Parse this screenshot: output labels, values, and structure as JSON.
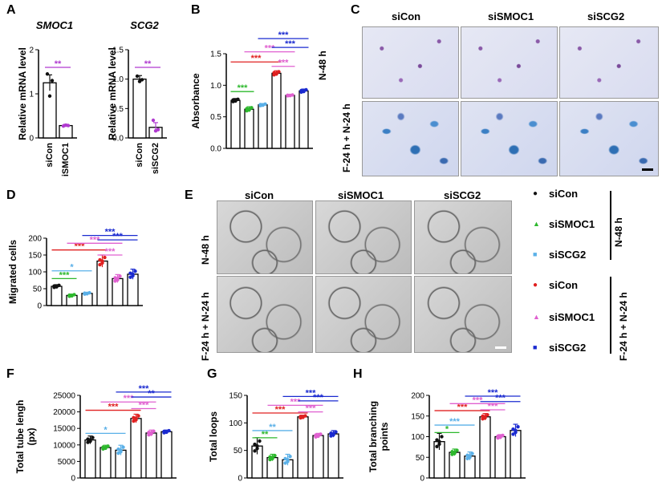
{
  "panels": {
    "A": "A",
    "B": "B",
    "C": "C",
    "D": "D",
    "E": "E",
    "F": "F",
    "G": "G",
    "H": "H"
  },
  "colors": {
    "black": "#111111",
    "green": "#2db82d",
    "lightblue": "#5ab0e8",
    "red": "#e02020",
    "pink": "#e060d0",
    "blue": "#1a2ad0",
    "purple": "#b03ad0",
    "bar_edge": "#000000"
  },
  "chart_data": [
    {
      "id": "A1",
      "type": "bar",
      "title": "SMOC1",
      "ylabel": "Relative mRNA level",
      "categories": [
        "siCon",
        "siSMOC1"
      ],
      "values": [
        1.25,
        0.28
      ],
      "errors": [
        0.18,
        0.03
      ],
      "ylim": [
        0,
        2.0
      ],
      "yticks": [
        "0",
        "1",
        "2"
      ],
      "ytick_values": [
        0,
        1,
        2
      ],
      "bar_colors": [
        "#ffffff",
        "#ffffff"
      ],
      "point_colors": [
        "#111111",
        "#b03ad0"
      ],
      "points": [
        [
          1.45,
          0.95,
          1.3
        ],
        [
          0.27,
          0.29,
          0.28
        ]
      ],
      "significance": [
        {
          "from": 0,
          "to": 1,
          "label": "**",
          "color": "#b03ad0",
          "y": 1.6
        }
      ]
    },
    {
      "id": "A2",
      "type": "bar",
      "title": "SCG2",
      "ylabel": "Relative mRNA level",
      "categories": [
        "siCon",
        "siSCG2"
      ],
      "values": [
        1.0,
        0.18
      ],
      "errors": [
        0.06,
        0.08
      ],
      "ylim": [
        0,
        1.5
      ],
      "yticks": [
        "0.0",
        "0.5",
        "1.0",
        "1.5"
      ],
      "ytick_values": [
        0,
        0.5,
        1.0,
        1.5
      ],
      "bar_colors": [
        "#ffffff",
        "#ffffff"
      ],
      "point_colors": [
        "#111111",
        "#b03ad0"
      ],
      "points": [
        [
          1.05,
          0.96,
          0.99
        ],
        [
          0.3,
          0.12,
          0.14
        ]
      ],
      "significance": [
        {
          "from": 0,
          "to": 1,
          "label": "**",
          "color": "#b03ad0",
          "y": 1.2
        }
      ]
    },
    {
      "id": "B",
      "type": "bar",
      "ylabel": "Absorbance",
      "categories": [
        "",
        "",
        "",
        "",
        "",
        ""
      ],
      "values": [
        0.76,
        0.62,
        0.69,
        1.19,
        0.84,
        0.91
      ],
      "errors": [
        0.03,
        0.04,
        0.02,
        0.04,
        0.01,
        0.03
      ],
      "ylim": [
        0,
        1.5
      ],
      "yticks": [
        "0.0",
        "0.5",
        "1.0",
        "1.5"
      ],
      "ytick_values": [
        0,
        0.5,
        1.0,
        1.5
      ],
      "point_colors": [
        "#111111",
        "#2db82d",
        "#5ab0e8",
        "#e02020",
        "#e060d0",
        "#1a2ad0"
      ],
      "significance": [
        {
          "from": 0,
          "to": 1,
          "label": "***",
          "color": "#2db82d",
          "y": 0.9
        },
        {
          "from": 0,
          "to": 3,
          "label": "***",
          "color": "#e02020",
          "y": 1.37
        },
        {
          "from": 1,
          "to": 4,
          "label": "***",
          "color": "#e060d0",
          "y": 1.53
        },
        {
          "from": 3,
          "to": 4,
          "label": "***",
          "color": "#e060d0",
          "y": 1.3
        },
        {
          "from": 2,
          "to": 5,
          "label": "***",
          "color": "#1a2ad0",
          "y": 1.74
        },
        {
          "from": 3,
          "to": 5,
          "label": "***",
          "color": "#1a2ad0",
          "y": 1.6
        }
      ]
    },
    {
      "id": "D",
      "type": "bar",
      "ylabel": "Migrated cells",
      "categories": [
        "",
        "",
        "",
        "",
        "",
        ""
      ],
      "values": [
        57,
        30,
        36,
        132,
        80,
        93
      ],
      "errors": [
        5,
        4,
        3,
        18,
        12,
        15
      ],
      "ylim": [
        0,
        200
      ],
      "yticks": [
        "0",
        "50",
        "100",
        "150",
        "200"
      ],
      "ytick_values": [
        0,
        50,
        100,
        150,
        200
      ],
      "point_colors": [
        "#111111",
        "#2db82d",
        "#5ab0e8",
        "#e02020",
        "#e060d0",
        "#1a2ad0"
      ],
      "significance": [
        {
          "from": 0,
          "to": 1,
          "label": "***",
          "color": "#2db82d",
          "y": 80
        },
        {
          "from": 0,
          "to": 2,
          "label": "*",
          "color": "#5ab0e8",
          "y": 103
        },
        {
          "from": 0,
          "to": 3,
          "label": "***",
          "color": "#e02020",
          "y": 165
        },
        {
          "from": 1,
          "to": 4,
          "label": "***",
          "color": "#e060d0",
          "y": 185
        },
        {
          "from": 3,
          "to": 4,
          "label": "***",
          "color": "#e060d0",
          "y": 150
        },
        {
          "from": 2,
          "to": 5,
          "label": "***",
          "color": "#1a2ad0",
          "y": 208
        },
        {
          "from": 3,
          "to": 5,
          "label": "***",
          "color": "#1a2ad0",
          "y": 195
        }
      ]
    },
    {
      "id": "F",
      "type": "bar",
      "ylabel": "Total tube lengh (px)",
      "categories": [
        "",
        "",
        "",
        "",
        "",
        ""
      ],
      "values": [
        11500,
        9200,
        8400,
        18000,
        13600,
        14000
      ],
      "errors": [
        1200,
        700,
        1500,
        1300,
        900,
        500
      ],
      "ylim": [
        0,
        25000
      ],
      "yticks": [
        "0",
        "5000",
        "10000",
        "15000",
        "20000",
        "25000"
      ],
      "ytick_values": [
        0,
        5000,
        10000,
        15000,
        20000,
        25000
      ],
      "point_colors": [
        "#111111",
        "#2db82d",
        "#5ab0e8",
        "#e02020",
        "#e060d0",
        "#1a2ad0"
      ],
      "significance": [
        {
          "from": 0,
          "to": 2,
          "label": "*",
          "color": "#5ab0e8",
          "y": 13500
        },
        {
          "from": 0,
          "to": 3,
          "label": "***",
          "color": "#e02020",
          "y": 20500
        },
        {
          "from": 1,
          "to": 4,
          "label": "***",
          "color": "#e060d0",
          "y": 23000
        },
        {
          "from": 3,
          "to": 4,
          "label": "***",
          "color": "#e060d0",
          "y": 21000
        },
        {
          "from": 2,
          "to": 5,
          "label": "***",
          "color": "#1a2ad0",
          "y": 26000
        },
        {
          "from": 3,
          "to": 5,
          "label": "**",
          "color": "#1a2ad0",
          "y": 24500
        }
      ]
    },
    {
      "id": "G",
      "type": "bar",
      "ylabel": "Total loops",
      "categories": [
        "",
        "",
        "",
        "",
        "",
        ""
      ],
      "values": [
        58,
        37,
        33,
        111,
        77,
        80
      ],
      "errors": [
        15,
        6,
        10,
        3,
        4,
        6
      ],
      "ylim": [
        0,
        150
      ],
      "yticks": [
        "0",
        "50",
        "100",
        "150"
      ],
      "ytick_values": [
        0,
        50,
        100,
        150
      ],
      "point_colors": [
        "#111111",
        "#2db82d",
        "#5ab0e8",
        "#e02020",
        "#e060d0",
        "#1a2ad0"
      ],
      "significance": [
        {
          "from": 0,
          "to": 1,
          "label": "**",
          "color": "#2db82d",
          "y": 73
        },
        {
          "from": 0,
          "to": 2,
          "label": "**",
          "color": "#5ab0e8",
          "y": 86
        },
        {
          "from": 0,
          "to": 3,
          "label": "***",
          "color": "#e02020",
          "y": 118
        },
        {
          "from": 1,
          "to": 4,
          "label": "***",
          "color": "#e060d0",
          "y": 132
        },
        {
          "from": 3,
          "to": 4,
          "label": "***",
          "color": "#e060d0",
          "y": 120
        },
        {
          "from": 2,
          "to": 5,
          "label": "***",
          "color": "#1a2ad0",
          "y": 148
        },
        {
          "from": 3,
          "to": 5,
          "label": "***",
          "color": "#1a2ad0",
          "y": 140
        }
      ]
    },
    {
      "id": "H",
      "type": "bar",
      "ylabel": "Total branching points",
      "categories": [
        "",
        "",
        "",
        "",
        "",
        ""
      ],
      "values": [
        88,
        62,
        53,
        148,
        100,
        115
      ],
      "errors": [
        20,
        8,
        10,
        8,
        5,
        15
      ],
      "ylim": [
        0,
        200
      ],
      "yticks": [
        "0",
        "50",
        "100",
        "150",
        "200"
      ],
      "ytick_values": [
        0,
        50,
        100,
        150,
        200
      ],
      "point_colors": [
        "#111111",
        "#2db82d",
        "#5ab0e8",
        "#e02020",
        "#e060d0",
        "#1a2ad0"
      ],
      "significance": [
        {
          "from": 0,
          "to": 1,
          "label": "*",
          "color": "#2db82d",
          "y": 110
        },
        {
          "from": 0,
          "to": 2,
          "label": "***",
          "color": "#5ab0e8",
          "y": 128
        },
        {
          "from": 0,
          "to": 3,
          "label": "***",
          "color": "#e02020",
          "y": 163
        },
        {
          "from": 1,
          "to": 4,
          "label": "***",
          "color": "#e060d0",
          "y": 180
        },
        {
          "from": 3,
          "to": 4,
          "label": "***",
          "color": "#e060d0",
          "y": 165
        },
        {
          "from": 2,
          "to": 5,
          "label": "***",
          "color": "#1a2ad0",
          "y": 198
        },
        {
          "from": 3,
          "to": 5,
          "label": "***",
          "color": "#1a2ad0",
          "y": 185
        }
      ]
    }
  ],
  "panelC": {
    "cols": [
      "siCon",
      "siSMOC1",
      "siSCG2"
    ],
    "rows": [
      "N-48 h",
      "F-24 h + N-24 h"
    ]
  },
  "panelE": {
    "cols": [
      "siCon",
      "siSMOC1",
      "siSCG2"
    ],
    "rows": [
      "N-48 h",
      "F-24 h + N-24 h"
    ]
  },
  "legend": {
    "groupA": {
      "label": "N-48 h",
      "items": [
        {
          "label": "siCon",
          "marker": "●",
          "color": "#111111"
        },
        {
          "label": "siSMOC1",
          "marker": "▲",
          "color": "#2db82d"
        },
        {
          "label": "siSCG2",
          "marker": "■",
          "color": "#5ab0e8"
        }
      ]
    },
    "groupB": {
      "label": "F-24 h + N-24 h",
      "items": [
        {
          "label": "siCon",
          "marker": "●",
          "color": "#e02020"
        },
        {
          "label": "siSMOC1",
          "marker": "▲",
          "color": "#e060d0"
        },
        {
          "label": "siSCG2",
          "marker": "■",
          "color": "#1a2ad0"
        }
      ]
    }
  }
}
